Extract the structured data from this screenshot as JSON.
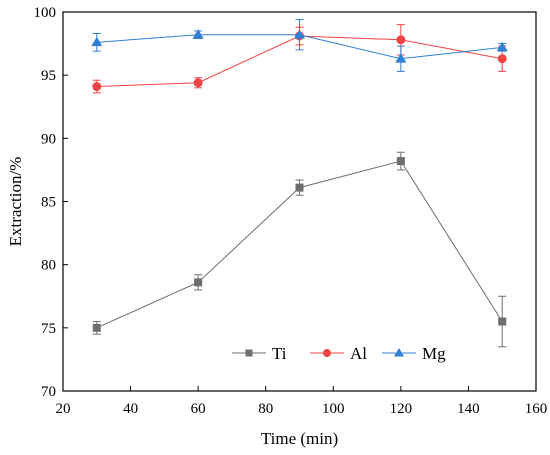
{
  "chart_data": {
    "type": "line",
    "title": "",
    "xlabel": "Time (min)",
    "ylabel": "Extraction/%",
    "xlim": [
      20,
      160
    ],
    "ylim": [
      70,
      100
    ],
    "xticks": [
      "20",
      "40",
      "60",
      "80",
      "100",
      "120",
      "140",
      "160"
    ],
    "yticks": [
      "70",
      "75",
      "80",
      "85",
      "90",
      "95",
      "100"
    ],
    "x": [
      30,
      60,
      90,
      120,
      150
    ],
    "grid": false,
    "legend_position": "bottom-center",
    "series": [
      {
        "name": "Ti",
        "color": "#6e6e6e",
        "marker": "square",
        "values": [
          75.0,
          78.6,
          86.1,
          88.2,
          75.5
        ],
        "errors": [
          0.5,
          0.6,
          0.6,
          0.7,
          2.0
        ]
      },
      {
        "name": "Al",
        "color": "#f04545",
        "marker": "circle",
        "values": [
          94.1,
          94.4,
          98.1,
          97.8,
          96.3
        ],
        "errors": [
          0.5,
          0.4,
          0.7,
          1.2,
          1.0
        ]
      },
      {
        "name": "Mg",
        "color": "#2f7fd4",
        "marker": "triangle",
        "values": [
          97.6,
          98.2,
          98.2,
          96.3,
          97.2
        ],
        "errors": [
          0.7,
          0.3,
          1.2,
          1.0,
          0.3
        ]
      }
    ]
  }
}
